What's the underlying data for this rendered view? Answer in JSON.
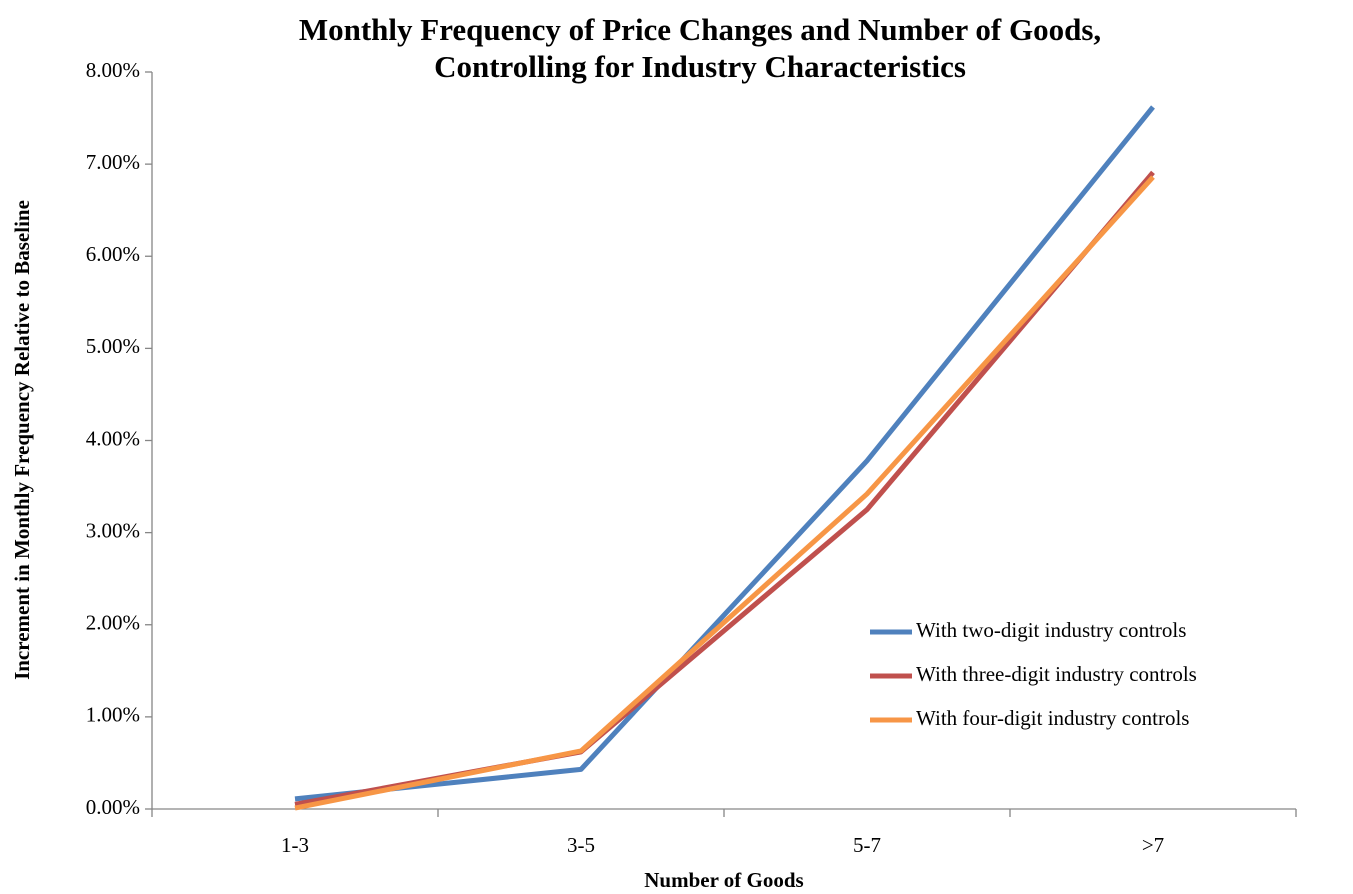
{
  "chart_data": {
    "type": "line",
    "title": [
      "Monthly Frequency of Price Changes and Number of Goods,",
      "Controlling for Industry Characteristics"
    ],
    "xlabel": "Number of Goods",
    "ylabel": "Increment in Monthly Frequency Relative to Baseline",
    "categories": [
      "1-3",
      "3-5",
      "5-7",
      ">7"
    ],
    "series": [
      {
        "name": "With two-digit industry controls",
        "color": "#4f81bd",
        "values": [
          0.11,
          0.43,
          3.78,
          7.62
        ]
      },
      {
        "name": "With three-digit industry controls",
        "color": "#c0504d",
        "values": [
          0.05,
          0.62,
          3.25,
          6.91
        ]
      },
      {
        "name": "With four-digit industry controls",
        "color": "#f79646",
        "values": [
          0.01,
          0.63,
          3.42,
          6.86
        ]
      }
    ],
    "ylim": [
      0,
      8
    ],
    "yticks": [
      {
        "value": 0,
        "label": "0.00%"
      },
      {
        "value": 1,
        "label": "1.00%"
      },
      {
        "value": 2,
        "label": "2.00%"
      },
      {
        "value": 3,
        "label": "3.00%"
      },
      {
        "value": 4,
        "label": "4.00%"
      },
      {
        "value": 5,
        "label": "5.00%"
      },
      {
        "value": 6,
        "label": "6.00%"
      },
      {
        "value": 7,
        "label": "7.00%"
      },
      {
        "value": 8,
        "label": "8.00%"
      }
    ],
    "grid": false,
    "legend": "lower right"
  }
}
